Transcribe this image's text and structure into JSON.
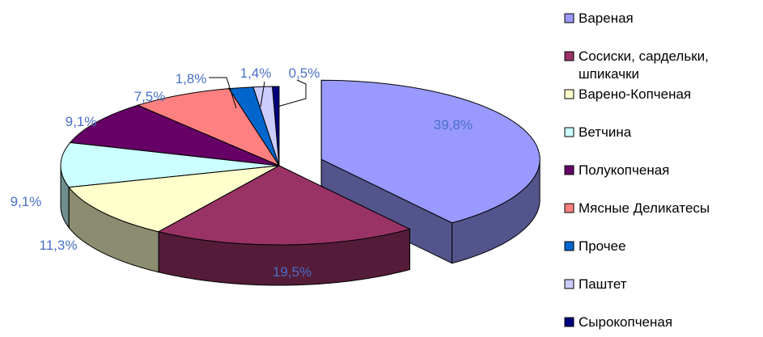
{
  "chart_data": {
    "type": "pie",
    "style": "exploded 3D",
    "legend_position": "right",
    "value_format": "comma-decimal percent",
    "label_color": "#4a6fc8",
    "slices": [
      {
        "name": "Вареная",
        "value": 39.8,
        "label": "39,8%",
        "color": "#9999ff"
      },
      {
        "name": "Сосиски, сардельки, шпикачки",
        "value": 19.5,
        "label": "19,5%",
        "color": "#993366"
      },
      {
        "name": "Варено-Копченая",
        "value": 11.3,
        "label": "11,3%",
        "color": "#ffffcc"
      },
      {
        "name": "Ветчина",
        "value": 9.1,
        "label": "9,1%",
        "color": "#ccffff"
      },
      {
        "name": "Полукопченая",
        "value": 9.1,
        "label": "9,1%",
        "color": "#660066"
      },
      {
        "name": "Мясные Деликатесы",
        "value": 7.5,
        "label": "7,5%",
        "color": "#ff8080"
      },
      {
        "name": "Прочее",
        "value": 1.8,
        "label": "1,8%",
        "color": "#0066cc"
      },
      {
        "name": "Паштет",
        "value": 1.4,
        "label": "1,4%",
        "color": "#ccccff"
      },
      {
        "name": "Сырокопченая",
        "value": 0.5,
        "label": "0,5%",
        "color": "#000080"
      }
    ]
  }
}
